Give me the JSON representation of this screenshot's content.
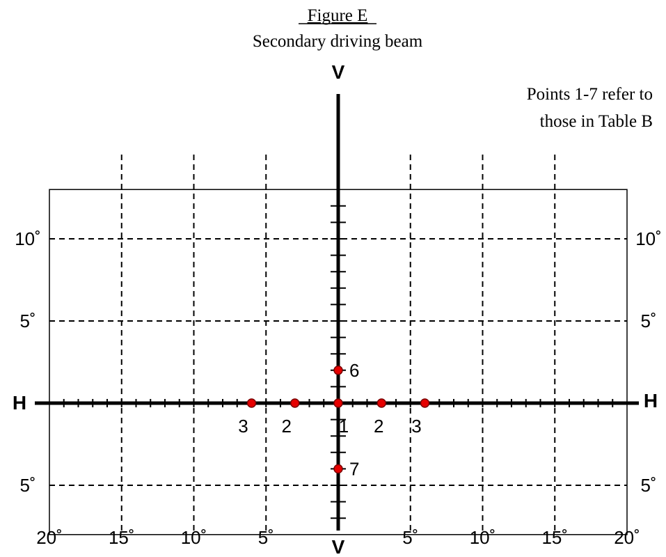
{
  "figure": {
    "title": "Figure E",
    "subtitle": "Secondary driving beam",
    "note_lines": [
      "Points 1-7 refer to",
      "those in Table B"
    ]
  },
  "axes": {
    "vertical_axis_label": "V",
    "horizontal_axis_label": "H"
  },
  "chart_data": {
    "type": "scatter",
    "x_range_deg": [
      -20,
      20
    ],
    "y_range_deg": [
      -8,
      13
    ],
    "x_grid_deg": [
      -15,
      -10,
      -5,
      5,
      10,
      15
    ],
    "y_grid_deg": [
      10,
      5,
      -5
    ],
    "tick_step_deg": 1,
    "x_tick_labels": [
      {
        "value": -20,
        "text": "20˚"
      },
      {
        "value": -15,
        "text": "15˚"
      },
      {
        "value": -10,
        "text": "10˚"
      },
      {
        "value": -5,
        "text": "5˚"
      },
      {
        "value": 5,
        "text": "5˚"
      },
      {
        "value": 10,
        "text": "10˚"
      },
      {
        "value": 15,
        "text": "15˚"
      },
      {
        "value": 20,
        "text": "20˚"
      }
    ],
    "y_tick_labels": [
      {
        "value": 10,
        "text": "10˚"
      },
      {
        "value": 5,
        "text": "5˚"
      },
      {
        "value": -5,
        "text": "5˚"
      }
    ],
    "points": [
      {
        "label": "1",
        "x": 0,
        "y": 0
      },
      {
        "label": "2",
        "x": -3,
        "y": 0
      },
      {
        "label": "2",
        "x": 3,
        "y": 0
      },
      {
        "label": "3",
        "x": -6,
        "y": 0
      },
      {
        "label": "3",
        "x": 6,
        "y": 0
      },
      {
        "label": "6",
        "x": 0,
        "y": 2
      },
      {
        "label": "7",
        "x": 0,
        "y": -4
      }
    ]
  }
}
